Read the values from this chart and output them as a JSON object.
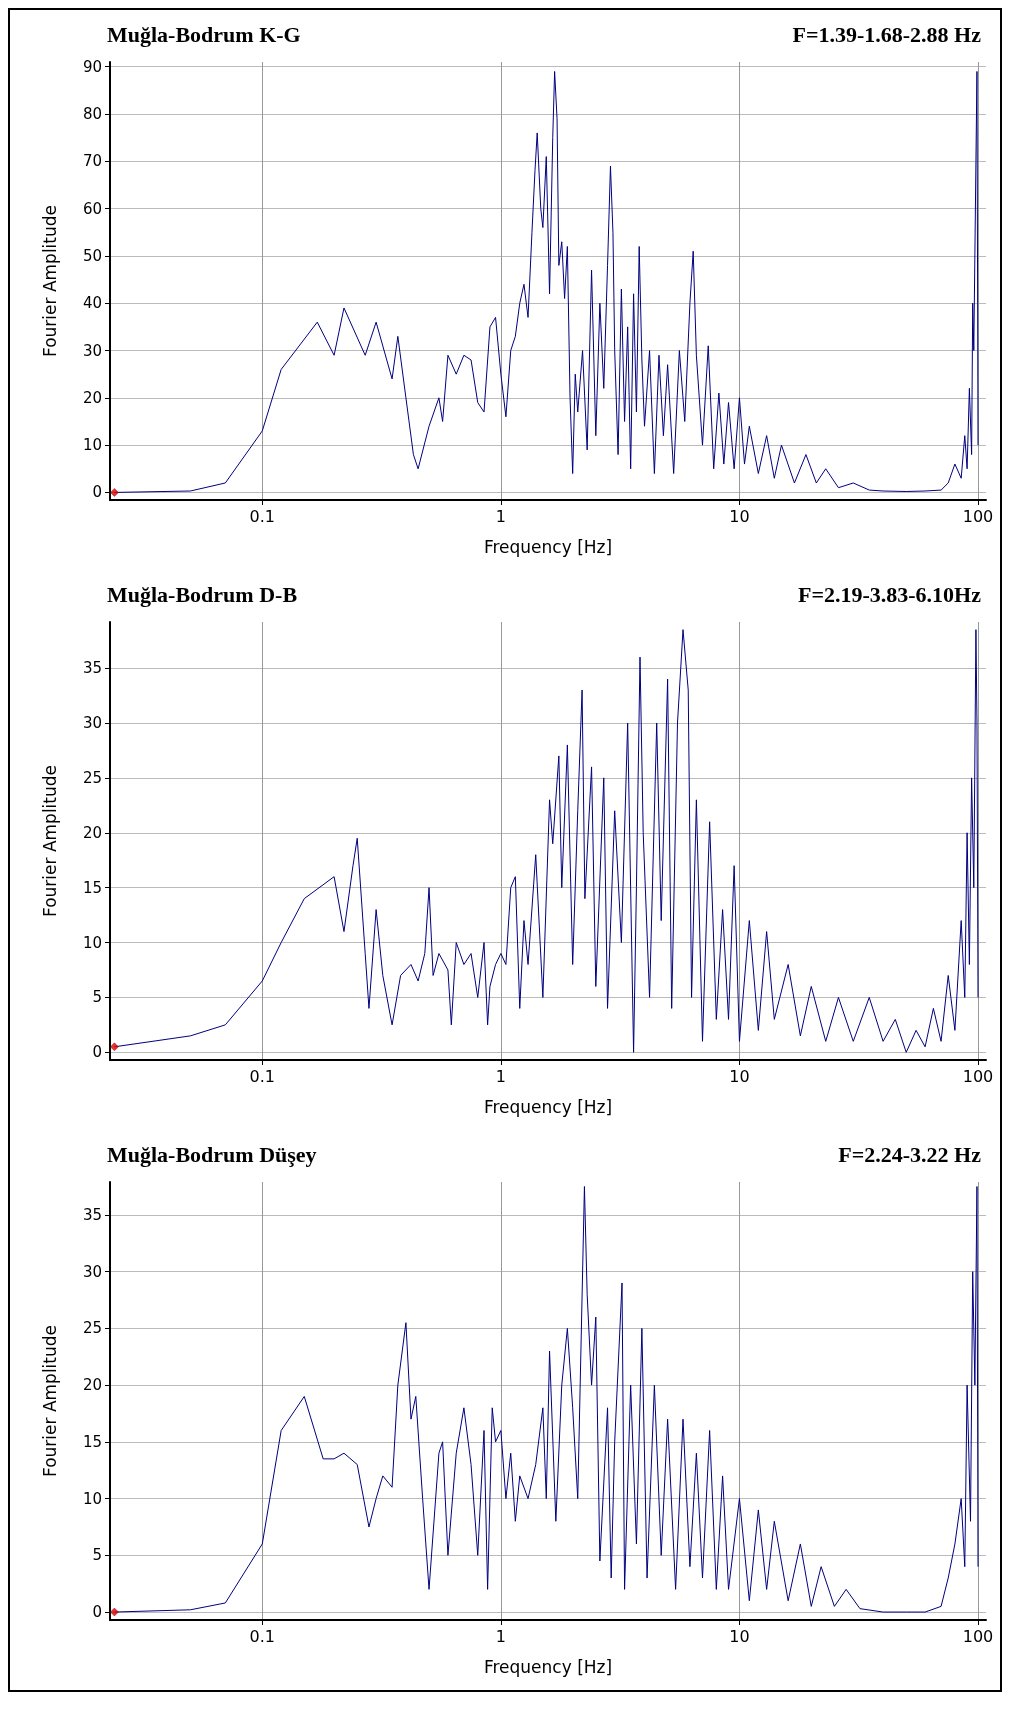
{
  "chart_data": [
    {
      "type": "line",
      "title": "Muğla-Bodrum K-G",
      "subtitle": "F=1.39-1.68-2.88 Hz",
      "xlabel": "Frequency [Hz]",
      "ylabel": "Fourier Amplitude",
      "log": "x",
      "grid": true,
      "xlim": [
        0.023,
        108
      ],
      "xticks": [
        0.1,
        1,
        10,
        100
      ],
      "ylim": [
        -1.6,
        91
      ],
      "yticks": [
        0,
        10,
        20,
        30,
        40,
        50,
        60,
        70,
        80,
        90
      ],
      "series": [
        {
          "type": "line",
          "color": "#00007f",
          "marker": "none",
          "x": [
            0.024,
            0.05,
            0.07,
            0.1,
            0.12,
            0.17,
            0.2,
            0.22,
            0.27,
            0.3,
            0.35,
            0.37,
            0.4,
            0.43,
            0.45,
            0.5,
            0.55,
            0.57,
            0.6,
            0.65,
            0.7,
            0.75,
            0.8,
            0.85,
            0.9,
            0.95,
            1.0,
            1.05,
            1.1,
            1.15,
            1.2,
            1.25,
            1.3,
            1.35,
            1.39,
            1.42,
            1.47,
            1.5,
            1.55,
            1.6,
            1.65,
            1.68,
            1.72,
            1.75,
            1.8,
            1.85,
            1.9,
            1.95,
            2.0,
            2.05,
            2.1,
            2.2,
            2.3,
            2.4,
            2.5,
            2.6,
            2.7,
            2.8,
            2.88,
            2.95,
            3.0,
            3.1,
            3.2,
            3.3,
            3.4,
            3.5,
            3.6,
            3.7,
            3.8,
            3.9,
            4.0,
            4.2,
            4.4,
            4.6,
            4.8,
            5.0,
            5.3,
            5.6,
            5.9,
            6.2,
            6.4,
            6.6,
            7.0,
            7.4,
            7.8,
            8.2,
            8.6,
            9.0,
            9.5,
            10,
            10.5,
            11,
            12,
            13,
            14,
            15,
            17,
            19,
            21,
            23,
            26,
            30,
            35,
            40,
            50,
            60,
            70,
            75,
            80,
            85,
            88,
            90,
            92,
            94,
            95,
            96,
            97,
            98,
            99,
            100
          ],
          "values": [
            0,
            0.3,
            2,
            13,
            26,
            36,
            29,
            39,
            29,
            36,
            24,
            33,
            20,
            8,
            5,
            14,
            20,
            15,
            29,
            25,
            29,
            28,
            19,
            17,
            35,
            37,
            25,
            16,
            30,
            33,
            40,
            44,
            37,
            55,
            68,
            76,
            60,
            56,
            71,
            42,
            75,
            89,
            79,
            48,
            53,
            41,
            52,
            20,
            4,
            25,
            17,
            30,
            9,
            47,
            12,
            40,
            22,
            48,
            69,
            55,
            30,
            8,
            43,
            15,
            35,
            5,
            42,
            17,
            52,
            28,
            14,
            30,
            4,
            29,
            12,
            27,
            4,
            30,
            15,
            40,
            51,
            29,
            10,
            31,
            5,
            21,
            6,
            19,
            5,
            20,
            6,
            14,
            4,
            12,
            3,
            10,
            2,
            8,
            2,
            5,
            1,
            2,
            0.5,
            0.3,
            0.2,
            0.3,
            0.5,
            2,
            6,
            3,
            12,
            5,
            22,
            8,
            40,
            30,
            50,
            70,
            89,
            10
          ]
        },
        {
          "type": "scatter",
          "color": "#e00000",
          "marker": "diamond",
          "x": [
            0.024
          ],
          "values": [
            0
          ]
        }
      ]
    },
    {
      "type": "line",
      "title": "Muğla-Bodrum D-B",
      "subtitle": "F=2.19-3.83-6.10Hz",
      "xlabel": "Frequency [Hz]",
      "ylabel": "Fourier Amplitude",
      "log": "x",
      "grid": true,
      "xlim": [
        0.023,
        108
      ],
      "xticks": [
        0.1,
        1,
        10,
        100
      ],
      "ylim": [
        -0.7,
        39.2
      ],
      "yticks": [
        0,
        5,
        10,
        15,
        20,
        25,
        30,
        35
      ],
      "series": [
        {
          "type": "line",
          "color": "#00007f",
          "marker": "none",
          "x": [
            0.024,
            0.05,
            0.07,
            0.1,
            0.12,
            0.15,
            0.2,
            0.22,
            0.24,
            0.25,
            0.27,
            0.28,
            0.3,
            0.32,
            0.35,
            0.38,
            0.42,
            0.45,
            0.48,
            0.5,
            0.52,
            0.55,
            0.6,
            0.62,
            0.65,
            0.7,
            0.75,
            0.8,
            0.85,
            0.88,
            0.9,
            0.95,
            1.0,
            1.05,
            1.1,
            1.15,
            1.2,
            1.25,
            1.3,
            1.4,
            1.5,
            1.6,
            1.65,
            1.75,
            1.8,
            1.9,
            2.0,
            2.1,
            2.19,
            2.25,
            2.4,
            2.5,
            2.7,
            2.8,
            3.0,
            3.2,
            3.4,
            3.6,
            3.7,
            3.83,
            3.95,
            4.2,
            4.5,
            4.7,
            5.0,
            5.2,
            5.5,
            5.8,
            6.1,
            6.3,
            6.6,
            7.0,
            7.5,
            8,
            8.5,
            9,
            9.5,
            10,
            11,
            12,
            13,
            14,
            16,
            18,
            20,
            23,
            26,
            30,
            35,
            40,
            45,
            50,
            55,
            60,
            65,
            70,
            75,
            80,
            85,
            88,
            90,
            92,
            94,
            96,
            98,
            99,
            100
          ],
          "values": [
            0.5,
            1.5,
            2.5,
            6.5,
            10,
            14,
            16,
            11,
            17,
            19.5,
            9,
            4,
            13,
            7,
            2.5,
            7,
            8,
            6.5,
            9,
            15,
            7,
            9,
            7.5,
            2.5,
            10,
            8,
            9,
            5,
            10,
            2.5,
            6,
            8,
            9,
            8,
            15,
            16,
            4,
            12,
            8,
            18,
            5,
            23,
            19,
            27,
            15,
            28,
            8,
            22,
            33,
            14,
            26,
            6,
            25,
            4,
            22,
            10,
            30,
            0,
            15,
            36,
            20,
            5,
            30,
            12,
            34,
            4,
            30,
            38.5,
            33,
            5,
            23,
            1,
            21,
            3,
            13,
            3,
            17,
            1,
            12,
            2,
            11,
            3,
            8,
            1.5,
            6,
            1,
            5,
            1,
            5,
            1,
            3,
            0,
            2,
            0.5,
            4,
            1,
            7,
            2,
            12,
            5,
            20,
            8,
            25,
            15,
            38.5,
            30,
            5
          ]
        },
        {
          "type": "scatter",
          "color": "#e00000",
          "marker": "diamond",
          "x": [
            0.024
          ],
          "values": [
            0.5
          ]
        }
      ]
    },
    {
      "type": "line",
      "title": "Muğla-Bodrum Düşey",
      "subtitle": "F=2.24-3.22 Hz",
      "xlabel": "Frequency [Hz]",
      "ylabel": "Fourier Amplitude",
      "log": "x",
      "grid": true,
      "xlim": [
        0.023,
        108
      ],
      "xticks": [
        0.1,
        1,
        10,
        100
      ],
      "ylim": [
        -0.7,
        37.9
      ],
      "yticks": [
        0,
        5,
        10,
        15,
        20,
        25,
        30,
        35
      ],
      "series": [
        {
          "type": "line",
          "color": "#00007f",
          "marker": "none",
          "x": [
            0.024,
            0.05,
            0.07,
            0.1,
            0.12,
            0.15,
            0.18,
            0.2,
            0.22,
            0.25,
            0.28,
            0.3,
            0.32,
            0.35,
            0.37,
            0.4,
            0.42,
            0.44,
            0.47,
            0.5,
            0.55,
            0.57,
            0.6,
            0.65,
            0.7,
            0.75,
            0.8,
            0.85,
            0.88,
            0.92,
            0.95,
            1.0,
            1.05,
            1.1,
            1.15,
            1.2,
            1.3,
            1.4,
            1.5,
            1.55,
            1.6,
            1.7,
            1.8,
            1.9,
            2.0,
            2.1,
            2.24,
            2.3,
            2.4,
            2.5,
            2.6,
            2.8,
            2.9,
            3.0,
            3.22,
            3.3,
            3.5,
            3.7,
            3.9,
            4.1,
            4.4,
            4.7,
            5.0,
            5.4,
            5.8,
            6.2,
            6.6,
            7,
            7.5,
            8,
            8.5,
            9,
            10,
            11,
            12,
            13,
            14,
            16,
            18,
            20,
            22,
            25,
            28,
            32,
            40,
            50,
            60,
            70,
            75,
            80,
            85,
            88,
            90,
            93,
            95,
            97,
            99,
            100
          ],
          "values": [
            0,
            0.2,
            0.8,
            6,
            16,
            19,
            13.5,
            13.5,
            14,
            13,
            7.5,
            10,
            12,
            11,
            20,
            25.5,
            17,
            19,
            10,
            2,
            14,
            15,
            5,
            14,
            18,
            13,
            5,
            16,
            2,
            18,
            15,
            16,
            10,
            14,
            8,
            12,
            10,
            13,
            18,
            10,
            23,
            8,
            20,
            25,
            18,
            10,
            37.5,
            28,
            20,
            26,
            4.5,
            18,
            3,
            15,
            29,
            2,
            20,
            6,
            25,
            3,
            20,
            5,
            17,
            2,
            17,
            4,
            14,
            3,
            16,
            2,
            12,
            2,
            10,
            1,
            9,
            2,
            8,
            1,
            6,
            0.5,
            4,
            0.5,
            2,
            0.3,
            0,
            0,
            0,
            0.5,
            3,
            6,
            10,
            4,
            20,
            8,
            30,
            20,
            37.5,
            4
          ]
        },
        {
          "type": "scatter",
          "color": "#e00000",
          "marker": "diamond",
          "x": [
            0.024
          ],
          "values": [
            0
          ]
        }
      ]
    }
  ]
}
